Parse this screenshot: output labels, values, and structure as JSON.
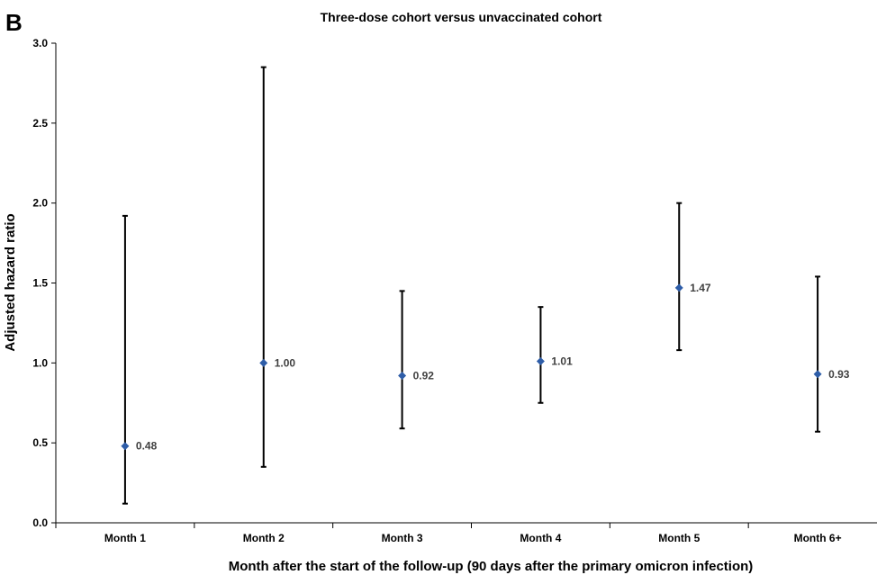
{
  "panel_label": "B",
  "colors": {
    "marker": "#2E5DA8",
    "error_bar": "#000000",
    "axis": "#000000",
    "data_label": "#404040"
  },
  "chart_data": {
    "type": "scatter",
    "title": "Three-dose cohort versus unvaccinated cohort",
    "xlabel": "Month after the start of the follow-up (90 days after the primary omicron infection)",
    "ylabel": "Adjusted hazard ratio",
    "ylim": [
      0,
      3.0
    ],
    "yticks": [
      "0.0",
      "0.5",
      "1.0",
      "1.5",
      "2.0",
      "2.5",
      "3.0"
    ],
    "categories": [
      "Month 1",
      "Month 2",
      "Month 3",
      "Month 4",
      "Month 5",
      "Month 6+"
    ],
    "series": [
      {
        "values": [
          0.48,
          1.0,
          0.92,
          1.01,
          1.47,
          0.93
        ],
        "labels": [
          "0.48",
          "1.00",
          "0.92",
          "1.01",
          "1.47",
          "0.93"
        ],
        "lower": [
          0.12,
          0.35,
          0.59,
          0.75,
          1.08,
          0.57
        ],
        "upper": [
          1.92,
          2.85,
          1.45,
          1.35,
          2.0,
          1.54
        ]
      }
    ],
    "grid": false,
    "legend": "none"
  }
}
